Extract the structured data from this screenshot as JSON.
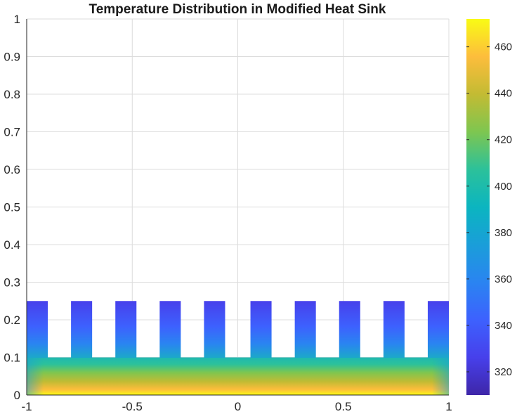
{
  "chart_data": {
    "type": "heatmap",
    "title": "Temperature Distribution in Modified Heat Sink",
    "xlabel": "",
    "ylabel": "",
    "xlim": [
      -1,
      1
    ],
    "ylim": [
      0,
      1
    ],
    "grid": true,
    "x_ticks": [
      "-1",
      "-0.5",
      "0",
      "0.5",
      "1"
    ],
    "y_ticks": [
      "0",
      "0.1",
      "0.2",
      "0.3",
      "0.4",
      "0.5",
      "0.6",
      "0.7",
      "0.8",
      "0.9",
      "1"
    ],
    "colorbar": {
      "colormap": "parula",
      "limits": [
        310,
        472
      ],
      "ticks": [
        "320",
        "340",
        "360",
        "380",
        "400",
        "420",
        "440",
        "460"
      ],
      "placement": "right"
    },
    "geometry": {
      "base": {
        "x_range": [
          -1,
          1
        ],
        "y_range": [
          0,
          0.1
        ]
      },
      "fin_count": 10,
      "fin_x_ranges": [
        [
          -1.0,
          -0.9
        ],
        [
          -0.79,
          -0.69
        ],
        [
          -0.58,
          -0.48
        ],
        [
          -0.37,
          -0.27
        ],
        [
          -0.16,
          -0.06
        ],
        [
          0.06,
          0.16
        ],
        [
          0.27,
          0.37
        ],
        [
          0.48,
          0.58
        ],
        [
          0.69,
          0.79
        ],
        [
          0.9,
          1.0
        ]
      ],
      "fin_y_range": [
        0.1,
        0.25
      ]
    },
    "temperature": {
      "bottom_max": 472,
      "base_top": 395,
      "base_edge_top": 380,
      "fin_tip": 322
    }
  }
}
